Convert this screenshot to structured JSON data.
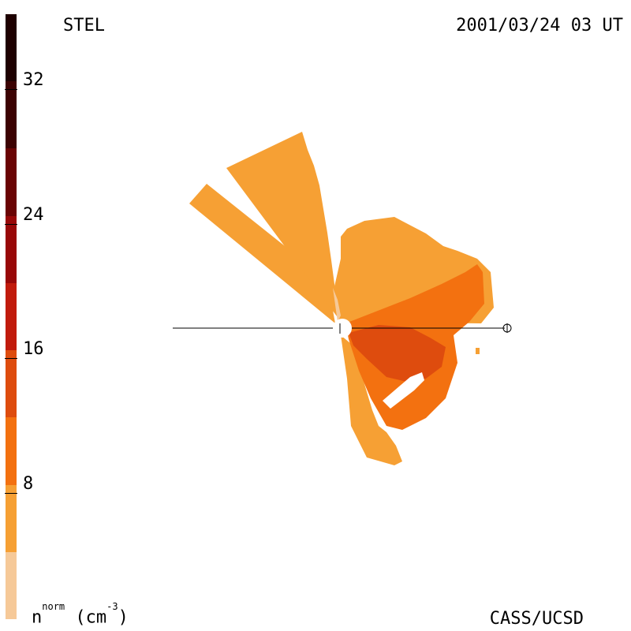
{
  "header": {
    "observatory": "STEL",
    "timestamp": "2001/03/24 03 UT"
  },
  "footer": {
    "credit": "CASS/UCSD",
    "unit_base": "n",
    "unit_sup": "norm",
    "unit_rest": "(cm",
    "unit_exp": "-3",
    "unit_close": ")"
  },
  "colorbar": {
    "ticks": [
      "8",
      "16",
      "24",
      "32"
    ],
    "tick_values": [
      8,
      16,
      24,
      32
    ],
    "range": [
      0,
      36
    ],
    "levels": [
      {
        "from": 0,
        "to": 4,
        "color": "#f6c998"
      },
      {
        "from": 4,
        "to": 8,
        "color": "#f6a034"
      },
      {
        "from": 8,
        "to": 12,
        "color": "#f37110"
      },
      {
        "from": 12,
        "to": 16,
        "color": "#de4c0e"
      },
      {
        "from": 16,
        "to": 20,
        "color": "#c11b0c"
      },
      {
        "from": 20,
        "to": 24,
        "color": "#980808"
      },
      {
        "from": 24,
        "to": 28,
        "color": "#6a0404"
      },
      {
        "from": 28,
        "to": 32,
        "color": "#3c0202"
      },
      {
        "from": 32,
        "to": 36,
        "color": "#1e0000"
      }
    ]
  },
  "map": {
    "sun_marker": "sun",
    "earth_marker": "earth"
  }
}
